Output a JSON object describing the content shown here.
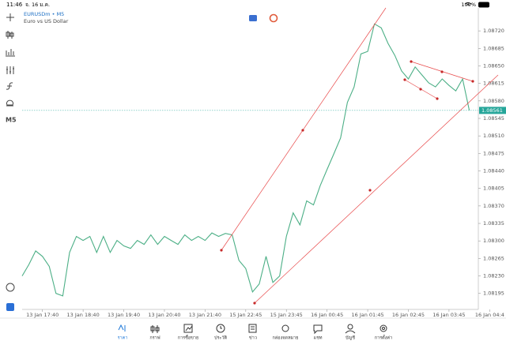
{
  "status_bar": {
    "time": "11:46",
    "date": "จ. 16 ม.ค.",
    "battery": "100%"
  },
  "chart_header": {
    "symbol": "EURUSDm • M5",
    "description": "Euro vs US Dollar"
  },
  "toolbar": {
    "timeframe": "M5"
  },
  "chart_data": {
    "type": "line",
    "color": "#4caf86",
    "categories": [
      null,
      null,
      null,
      "13 Jan 17:40",
      null,
      null,
      null,
      null,
      null,
      "13 Jan 18:40",
      null,
      null,
      null,
      null,
      null,
      "13 Jan 19:40",
      null,
      null,
      null,
      null,
      null,
      "13 Jan 20:40",
      null,
      null,
      null,
      null,
      null,
      "13 Jan 21:40",
      null,
      null,
      null,
      null,
      null,
      "15 Jan 22:45",
      null,
      null,
      null,
      null,
      null,
      "15 Jan 23:45",
      null,
      null,
      null,
      null,
      null,
      "16 Jan 00:45",
      null,
      null,
      null,
      null,
      null,
      "16 Jan 01:45",
      null,
      null,
      null,
      null,
      null,
      "16 Jan 02:45",
      null,
      null,
      null,
      null,
      null,
      "16 Jan 03:45",
      null,
      null,
      null,
      null,
      null,
      "16 Jan 04:4"
    ],
    "values": [
      1.0823,
      1.08253,
      1.0828,
      1.08269,
      1.08249,
      1.08195,
      1.0819,
      1.08277,
      1.08309,
      1.08301,
      1.08309,
      1.08277,
      1.08309,
      1.08277,
      1.08301,
      1.0829,
      1.08285,
      1.08301,
      1.08293,
      1.08312,
      1.08293,
      1.08309,
      1.08301,
      1.08293,
      1.08312,
      1.08301,
      1.08309,
      1.08301,
      1.08316,
      1.08309,
      1.08315,
      1.08312,
      1.08261,
      1.08245,
      1.08198,
      1.08214,
      1.08269,
      1.08217,
      1.0823,
      1.08309,
      1.08356,
      1.08332,
      1.0838,
      1.08372,
      1.08411,
      1.08443,
      1.08474,
      1.08506,
      1.08577,
      1.08608,
      1.08674,
      1.08679,
      1.08734,
      1.08726,
      1.08695,
      1.08671,
      1.0864,
      1.08624,
      1.08648,
      1.08632,
      1.08616,
      1.08608,
      1.08624,
      1.08611,
      1.086,
      1.08624,
      1.08561,
      null,
      null,
      null
    ],
    "ylim": [
      1.08163,
      1.08766
    ],
    "yticks": [
      {
        "value": 1.0872,
        "label": "1.08720"
      },
      1.08685,
      {
        "value": 1.0865,
        "label": "1.08650"
      },
      1.08615,
      {
        "value": 1.0858,
        "label": "1.08580"
      },
      1.08545,
      {
        "value": 1.0851,
        "label": "1.08510"
      },
      1.08475,
      {
        "value": 1.0844,
        "label": "1.08440"
      },
      1.08405,
      {
        "value": 1.0837,
        "label": "1.08370"
      },
      1.08335,
      {
        "value": 1.083,
        "label": "1.08300"
      },
      1.08265,
      {
        "value": 1.0823,
        "label": "1.08230"
      },
      1.08195
    ],
    "current_price": 1.08561,
    "current_price_color": "#26a69a"
  },
  "tabs": [
    "ราคา",
    "กราฟ",
    "การซื้อขาย",
    "ประวัติ",
    "ข่าว",
    "กล่องจดหมาย",
    "แชท",
    "บัญชี",
    "การตั้งค่า"
  ]
}
